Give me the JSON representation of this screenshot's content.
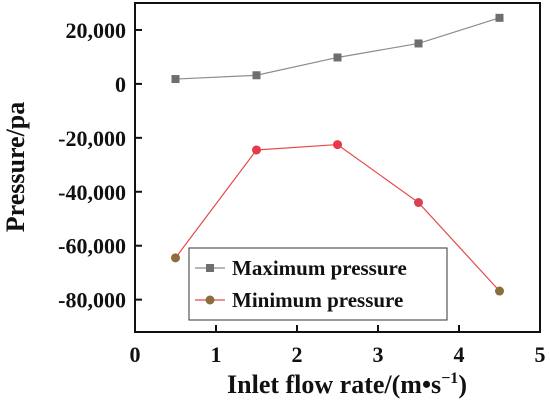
{
  "chart_data": {
    "type": "line",
    "xlabel": "Inlet flow rate/(m•s",
    "xlabel_sup": "−1",
    "xlabel_end": ")",
    "ylabel": "Pressure/pa",
    "xlim": [
      0,
      5
    ],
    "ylim": [
      -92000,
      30000
    ],
    "x_ticks": [
      {
        "value": 0,
        "label": "0"
      },
      {
        "value": 1,
        "label": "1"
      },
      {
        "value": 2,
        "label": "2"
      },
      {
        "value": 3,
        "label": "3"
      },
      {
        "value": 4,
        "label": "4"
      },
      {
        "value": 5,
        "label": "5"
      }
    ],
    "y_ticks": [
      {
        "value": 20000,
        "label": "20,000"
      },
      {
        "value": 0,
        "label": "0"
      },
      {
        "value": -20000,
        "label": "-20,000"
      },
      {
        "value": -40000,
        "label": "-40,000"
      },
      {
        "value": -60000,
        "label": "-60,000"
      },
      {
        "value": -80000,
        "label": "-80,000"
      }
    ],
    "grid": false,
    "legend_position": "bottom-center",
    "series": [
      {
        "name": "Maximum pressure",
        "marker": "square",
        "line_color": "#8c8c8c",
        "marker_color": "#6e6e6e",
        "x": [
          0.5,
          1.5,
          2.5,
          3.5,
          4.5
        ],
        "values": [
          1800,
          3200,
          9800,
          15000,
          24500
        ],
        "point_colors": [
          "#6e6e6e",
          "#6e6e6e",
          "#6e6e6e",
          "#6e6e6e",
          "#6e6e6e"
        ]
      },
      {
        "name": "Minimum pressure",
        "marker": "circle",
        "line_color": "#e64a4a",
        "marker_color": "#8c6e3c",
        "x": [
          0.5,
          1.5,
          2.5,
          3.5,
          4.5
        ],
        "values": [
          -64500,
          -24500,
          -22500,
          -44000,
          -76800
        ],
        "point_colors": [
          "#8c6e3c",
          "#e63a4a",
          "#e63a4a",
          "#d94050",
          "#8c6e3c"
        ]
      }
    ]
  }
}
